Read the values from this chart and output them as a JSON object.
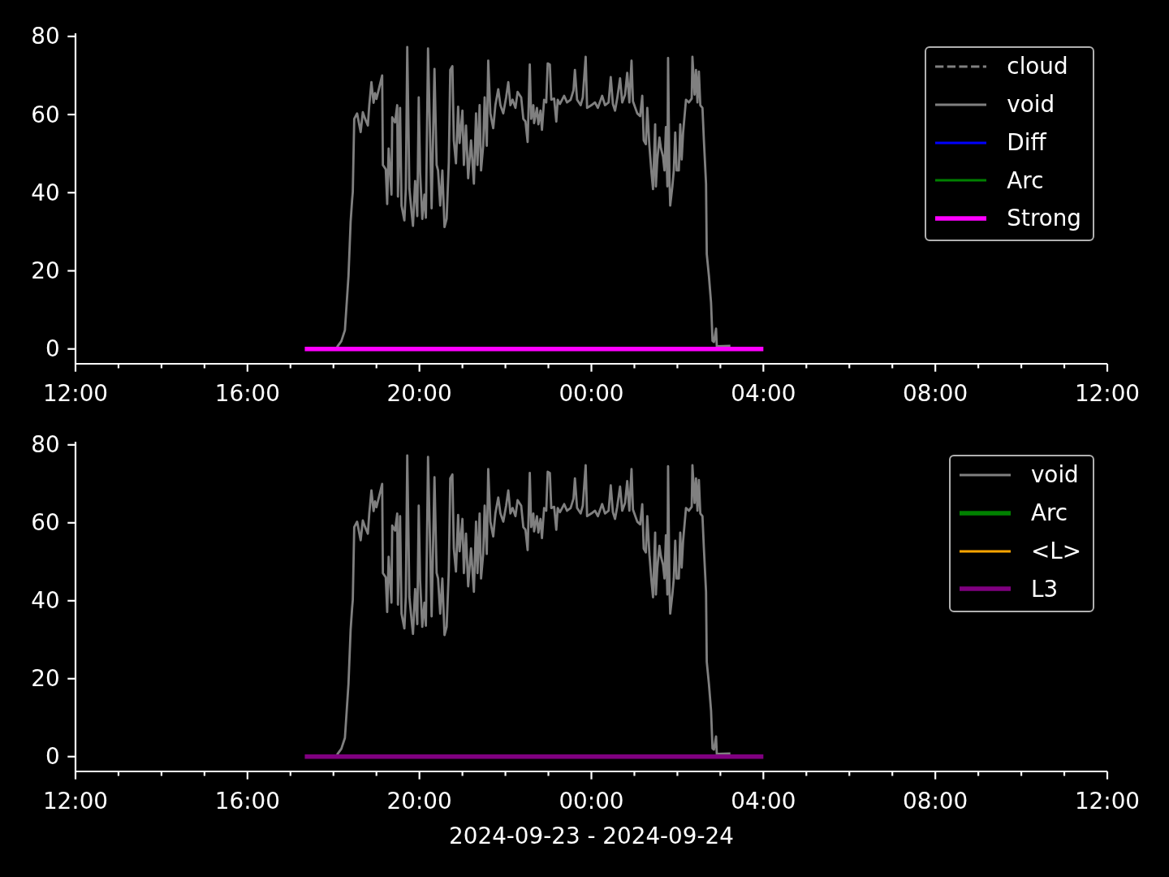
{
  "chart_data": [
    {
      "type": "line",
      "xlim": [
        "2024-09-23T12:00",
        "2024-09-24T12:00"
      ],
      "xticks": [
        {
          "value": "2024-09-23T12:00",
          "label": "12:00"
        },
        {
          "value": "2024-09-23T13:00",
          "label": null
        },
        {
          "value": "2024-09-23T14:00",
          "label": null
        },
        {
          "value": "2024-09-23T15:00",
          "label": null
        },
        {
          "value": "2024-09-23T16:00",
          "label": "16:00"
        },
        {
          "value": "2024-09-23T17:00",
          "label": null
        },
        {
          "value": "2024-09-23T18:00",
          "label": null
        },
        {
          "value": "2024-09-23T19:00",
          "label": null
        },
        {
          "value": "2024-09-23T20:00",
          "label": "20:00"
        },
        {
          "value": "2024-09-23T21:00",
          "label": null
        },
        {
          "value": "2024-09-23T22:00",
          "label": null
        },
        {
          "value": "2024-09-23T23:00",
          "label": null
        },
        {
          "value": "2024-09-24T00:00",
          "label": "00:00"
        },
        {
          "value": "2024-09-24T01:00",
          "label": null
        },
        {
          "value": "2024-09-24T02:00",
          "label": null
        },
        {
          "value": "2024-09-24T03:00",
          "label": null
        },
        {
          "value": "2024-09-24T04:00",
          "label": "04:00"
        },
        {
          "value": "2024-09-24T05:00",
          "label": null
        },
        {
          "value": "2024-09-24T06:00",
          "label": null
        },
        {
          "value": "2024-09-24T07:00",
          "label": null
        },
        {
          "value": "2024-09-24T08:00",
          "label": "08:00"
        },
        {
          "value": "2024-09-24T09:00",
          "label": null
        },
        {
          "value": "2024-09-24T10:00",
          "label": null
        },
        {
          "value": "2024-09-24T11:00",
          "label": null
        },
        {
          "value": "2024-09-24T12:00",
          "label": "12:00"
        }
      ],
      "ylim": [
        -3.8,
        80.8
      ],
      "yticks": [
        0,
        20,
        40,
        60,
        80
      ],
      "legend": "top right",
      "series": [
        {
          "name": "cloud",
          "color": "#808080",
          "line_style": "dashed"
        },
        {
          "name": "void",
          "color": "#808080",
          "x": [
            "2024-09-23T18:05",
            "2024-09-23T18:11",
            "2024-09-23T18:16",
            "2024-09-23T18:21",
            "2024-09-23T18:24",
            "2024-09-23T18:26",
            "2024-09-23T18:27",
            "2024-09-23T18:29",
            "2024-09-23T18:33",
            "2024-09-23T18:38",
            "2024-09-23T18:41",
            "2024-09-23T18:44",
            "2024-09-23T18:48",
            "2024-09-23T18:50",
            "2024-09-23T18:53",
            "2024-09-23T18:56",
            "2024-09-23T18:58",
            "2024-09-23T19:00",
            "2024-09-23T19:04",
            "2024-09-23T19:08",
            "2024-09-23T19:09",
            "2024-09-23T19:13",
            "2024-09-23T19:15",
            "2024-09-23T19:17",
            "2024-09-23T19:21",
            "2024-09-23T19:22",
            "2024-09-23T19:26",
            "2024-09-23T19:29",
            "2024-09-23T19:30",
            "2024-09-23T19:33",
            "2024-09-23T19:35",
            "2024-09-23T19:39",
            "2024-09-23T19:41",
            "2024-09-23T19:43",
            "2024-09-23T19:46",
            "2024-09-23T19:48",
            "2024-09-23T19:51",
            "2024-09-23T19:54",
            "2024-09-23T19:57",
            "2024-09-23T19:59",
            "2024-09-23T20:01",
            "2024-09-23T20:04",
            "2024-09-23T20:07",
            "2024-09-23T20:09",
            "2024-09-23T20:12",
            "2024-09-23T20:15",
            "2024-09-23T20:17",
            "2024-09-23T20:21",
            "2024-09-23T20:24",
            "2024-09-23T20:26",
            "2024-09-23T20:29",
            "2024-09-23T20:32",
            "2024-09-23T20:35",
            "2024-09-23T20:38",
            "2024-09-23T20:41",
            "2024-09-23T20:43",
            "2024-09-23T20:46",
            "2024-09-23T20:48",
            "2024-09-23T20:51",
            "2024-09-23T20:54",
            "2024-09-23T20:56",
            "2024-09-23T21:00",
            "2024-09-23T21:02",
            "2024-09-23T21:05",
            "2024-09-23T21:08",
            "2024-09-23T21:12",
            "2024-09-23T21:16",
            "2024-09-23T21:19",
            "2024-09-23T21:21",
            "2024-09-23T21:24",
            "2024-09-23T21:26",
            "2024-09-23T21:29",
            "2024-09-23T21:31",
            "2024-09-23T21:34",
            "2024-09-23T21:36",
            "2024-09-23T21:39",
            "2024-09-23T21:43",
            "2024-09-23T21:46",
            "2024-09-23T21:50",
            "2024-09-23T21:53",
            "2024-09-23T21:57",
            "2024-09-23T22:01",
            "2024-09-23T22:04",
            "2024-09-23T22:07",
            "2024-09-23T22:10",
            "2024-09-23T22:14",
            "2024-09-23T22:17",
            "2024-09-23T22:22",
            "2024-09-23T22:25",
            "2024-09-23T22:28",
            "2024-09-23T22:31",
            "2024-09-23T22:34",
            "2024-09-23T22:36",
            "2024-09-23T22:39",
            "2024-09-23T22:40",
            "2024-09-23T22:44",
            "2024-09-23T22:46",
            "2024-09-23T22:49",
            "2024-09-23T22:51",
            "2024-09-23T22:54",
            "2024-09-23T22:57",
            "2024-09-23T22:59",
            "2024-09-23T23:02",
            "2024-09-23T23:04",
            "2024-09-23T23:08",
            "2024-09-23T23:11",
            "2024-09-23T23:13",
            "2024-09-23T23:16",
            "2024-09-23T23:22",
            "2024-09-23T23:26",
            "2024-09-23T23:31",
            "2024-09-23T23:35",
            "2024-09-23T23:37",
            "2024-09-23T23:40",
            "2024-09-23T23:45",
            "2024-09-23T23:48",
            "2024-09-23T23:52",
            "2024-09-23T23:54",
            "2024-09-24T00:00",
            "2024-09-24T00:05",
            "2024-09-24T00:09",
            "2024-09-24T00:15",
            "2024-09-24T00:19",
            "2024-09-24T00:24",
            "2024-09-24T00:27",
            "2024-09-24T00:30",
            "2024-09-24T00:33",
            "2024-09-24T00:36",
            "2024-09-24T00:40",
            "2024-09-24T00:43",
            "2024-09-24T00:47",
            "2024-09-24T00:50",
            "2024-09-24T00:53",
            "2024-09-24T00:56",
            "2024-09-24T00:58",
            "2024-09-24T01:04",
            "2024-09-24T01:08",
            "2024-09-24T01:11",
            "2024-09-24T01:13",
            "2024-09-24T01:16",
            "2024-09-24T01:18",
            "2024-09-24T01:21",
            "2024-09-24T01:24",
            "2024-09-24T01:26",
            "2024-09-24T01:29",
            "2024-09-24T01:30",
            "2024-09-24T01:32",
            "2024-09-24T01:35",
            "2024-09-24T01:37",
            "2024-09-24T01:40",
            "2024-09-24T01:42",
            "2024-09-24T01:44",
            "2024-09-24T01:46",
            "2024-09-24T01:47",
            "2024-09-24T01:49",
            "2024-09-24T01:50",
            "2024-09-24T01:53",
            "2024-09-24T01:55",
            "2024-09-24T01:57",
            "2024-09-24T01:59",
            "2024-09-24T02:02",
            "2024-09-24T02:04",
            "2024-09-24T02:06",
            "2024-09-24T02:08",
            "2024-09-24T02:12",
            "2024-09-24T02:16",
            "2024-09-24T02:20",
            "2024-09-24T02:21",
            "2024-09-24T02:24",
            "2024-09-24T02:26",
            "2024-09-24T02:28",
            "2024-09-24T02:30",
            "2024-09-24T02:32",
            "2024-09-24T02:35",
            "2024-09-24T02:37",
            "2024-09-24T02:40",
            "2024-09-24T02:41",
            "2024-09-24T02:44",
            "2024-09-24T02:47",
            "2024-09-24T02:49",
            "2024-09-24T02:51",
            "2024-09-24T02:54",
            "2024-09-24T02:55",
            "2024-09-24T03:14"
          ],
          "values": [
            0.5,
            2,
            4.8,
            18.7,
            32.6,
            38,
            40.2,
            58.9,
            60.3,
            55.5,
            60.6,
            59,
            57.2,
            62.4,
            68.3,
            63,
            65.5,
            64,
            67,
            70,
            47.1,
            46,
            37.1,
            51.3,
            39.5,
            59.3,
            58,
            62.4,
            39,
            61.7,
            36.7,
            32.9,
            41,
            77.3,
            41,
            37,
            31.5,
            43,
            34,
            64.4,
            45,
            33.3,
            39.5,
            33.6,
            76.9,
            53.4,
            36,
            71.7,
            47.1,
            45.7,
            36.7,
            45.7,
            31.2,
            33.3,
            47.8,
            71.4,
            72.4,
            53.4,
            47.5,
            62,
            52.7,
            61,
            47.1,
            57.2,
            43.7,
            53.4,
            42.3,
            60.3,
            47.1,
            62.4,
            45.7,
            52,
            64.4,
            52,
            73.8,
            60.3,
            56.5,
            62.4,
            66.5,
            62.4,
            60.3,
            64.4,
            68.3,
            62.4,
            63.8,
            61.7,
            65.8,
            64.4,
            58.9,
            58.2,
            53,
            72.8,
            58.9,
            62.4,
            57.8,
            61.7,
            57.5,
            61,
            56.1,
            63.8,
            63.1,
            73.1,
            72.8,
            63.8,
            64.1,
            58.2,
            63.8,
            62.7,
            64.8,
            63.1,
            63.8,
            66.2,
            71.4,
            63.8,
            62.4,
            64.4,
            74.8,
            61.7,
            62.4,
            63.1,
            61.7,
            64.8,
            62.4,
            63.1,
            69.6,
            62.7,
            61,
            64.1,
            69.3,
            63.1,
            65.1,
            70.7,
            63.1,
            73.8,
            63.4,
            60.3,
            59.6,
            64.8,
            53.4,
            52.4,
            61.7,
            51.8,
            44.8,
            40.9,
            57.5,
            41.6,
            48.5,
            54.1,
            51.4,
            49.2,
            45.7,
            56.8,
            41.6,
            74.5,
            43,
            36.7,
            41.6,
            45.7,
            55.4,
            45.7,
            45.7,
            57.5,
            48.5,
            55.4,
            63.8,
            63.1,
            64.1,
            74.8,
            65.1,
            71.4,
            63.1,
            71,
            62.4,
            61.7,
            53.4,
            42.3,
            24.3,
            18.7,
            11.8,
            2.1,
            1.8,
            5.2,
            0.7,
            0.8
          ]
        },
        {
          "name": "Diff",
          "color": "#0000ff"
        },
        {
          "name": "Arc",
          "color": "#008000"
        },
        {
          "name": "Strong",
          "color": "#ff00ff",
          "x": [
            "2024-09-23T17:20",
            "2024-09-24T04:00"
          ],
          "values": [
            0,
            0
          ]
        }
      ]
    },
    {
      "type": "line",
      "xlabel": "2024-09-23 - 2024-09-24",
      "xlim": [
        "2024-09-23T12:00",
        "2024-09-24T12:00"
      ],
      "xticks": [
        {
          "value": "2024-09-23T12:00",
          "label": "12:00"
        },
        {
          "value": "2024-09-23T13:00",
          "label": null
        },
        {
          "value": "2024-09-23T14:00",
          "label": null
        },
        {
          "value": "2024-09-23T15:00",
          "label": null
        },
        {
          "value": "2024-09-23T16:00",
          "label": "16:00"
        },
        {
          "value": "2024-09-23T17:00",
          "label": null
        },
        {
          "value": "2024-09-23T18:00",
          "label": null
        },
        {
          "value": "2024-09-23T19:00",
          "label": null
        },
        {
          "value": "2024-09-23T20:00",
          "label": "20:00"
        },
        {
          "value": "2024-09-23T21:00",
          "label": null
        },
        {
          "value": "2024-09-23T22:00",
          "label": null
        },
        {
          "value": "2024-09-23T23:00",
          "label": null
        },
        {
          "value": "2024-09-24T00:00",
          "label": "00:00"
        },
        {
          "value": "2024-09-24T01:00",
          "label": null
        },
        {
          "value": "2024-09-24T02:00",
          "label": null
        },
        {
          "value": "2024-09-24T03:00",
          "label": null
        },
        {
          "value": "2024-09-24T04:00",
          "label": "04:00"
        },
        {
          "value": "2024-09-24T05:00",
          "label": null
        },
        {
          "value": "2024-09-24T06:00",
          "label": null
        },
        {
          "value": "2024-09-24T07:00",
          "label": null
        },
        {
          "value": "2024-09-24T08:00",
          "label": "08:00"
        },
        {
          "value": "2024-09-24T09:00",
          "label": null
        },
        {
          "value": "2024-09-24T10:00",
          "label": null
        },
        {
          "value": "2024-09-24T11:00",
          "label": null
        },
        {
          "value": "2024-09-24T12:00",
          "label": "12:00"
        }
      ],
      "ylim": [
        -3.8,
        80.8
      ],
      "yticks": [
        0,
        20,
        40,
        60,
        80
      ],
      "legend": "top right",
      "series": [
        {
          "name": "void",
          "color": "#808080",
          "x": [
            "2024-09-23T18:05",
            "2024-09-23T18:11",
            "2024-09-23T18:16",
            "2024-09-23T18:21",
            "2024-09-23T18:24",
            "2024-09-23T18:26",
            "2024-09-23T18:27",
            "2024-09-23T18:29",
            "2024-09-23T18:33",
            "2024-09-23T18:38",
            "2024-09-23T18:41",
            "2024-09-23T18:44",
            "2024-09-23T18:48",
            "2024-09-23T18:50",
            "2024-09-23T18:53",
            "2024-09-23T18:56",
            "2024-09-23T18:58",
            "2024-09-23T19:00",
            "2024-09-23T19:04",
            "2024-09-23T19:08",
            "2024-09-23T19:09",
            "2024-09-23T19:13",
            "2024-09-23T19:15",
            "2024-09-23T19:17",
            "2024-09-23T19:21",
            "2024-09-23T19:22",
            "2024-09-23T19:26",
            "2024-09-23T19:29",
            "2024-09-23T19:30",
            "2024-09-23T19:33",
            "2024-09-23T19:35",
            "2024-09-23T19:39",
            "2024-09-23T19:41",
            "2024-09-23T19:43",
            "2024-09-23T19:46",
            "2024-09-23T19:48",
            "2024-09-23T19:51",
            "2024-09-23T19:54",
            "2024-09-23T19:57",
            "2024-09-23T19:59",
            "2024-09-23T20:01",
            "2024-09-23T20:04",
            "2024-09-23T20:07",
            "2024-09-23T20:09",
            "2024-09-23T20:12",
            "2024-09-23T20:15",
            "2024-09-23T20:17",
            "2024-09-23T20:21",
            "2024-09-23T20:24",
            "2024-09-23T20:26",
            "2024-09-23T20:29",
            "2024-09-23T20:32",
            "2024-09-23T20:35",
            "2024-09-23T20:38",
            "2024-09-23T20:41",
            "2024-09-23T20:43",
            "2024-09-23T20:46",
            "2024-09-23T20:48",
            "2024-09-23T20:51",
            "2024-09-23T20:54",
            "2024-09-23T20:56",
            "2024-09-23T21:00",
            "2024-09-23T21:02",
            "2024-09-23T21:05",
            "2024-09-23T21:08",
            "2024-09-23T21:12",
            "2024-09-23T21:16",
            "2024-09-23T21:19",
            "2024-09-23T21:21",
            "2024-09-23T21:24",
            "2024-09-23T21:26",
            "2024-09-23T21:29",
            "2024-09-23T21:31",
            "2024-09-23T21:34",
            "2024-09-23T21:36",
            "2024-09-23T21:39",
            "2024-09-23T21:43",
            "2024-09-23T21:46",
            "2024-09-23T21:50",
            "2024-09-23T21:53",
            "2024-09-23T21:57",
            "2024-09-23T22:01",
            "2024-09-23T22:04",
            "2024-09-23T22:07",
            "2024-09-23T22:10",
            "2024-09-23T22:14",
            "2024-09-23T22:17",
            "2024-09-23T22:22",
            "2024-09-23T22:25",
            "2024-09-23T22:28",
            "2024-09-23T22:31",
            "2024-09-23T22:34",
            "2024-09-23T22:36",
            "2024-09-23T22:39",
            "2024-09-23T22:40",
            "2024-09-23T22:44",
            "2024-09-23T22:46",
            "2024-09-23T22:49",
            "2024-09-23T22:51",
            "2024-09-23T22:54",
            "2024-09-23T22:57",
            "2024-09-23T22:59",
            "2024-09-23T23:02",
            "2024-09-23T23:04",
            "2024-09-23T23:08",
            "2024-09-23T23:11",
            "2024-09-23T23:13",
            "2024-09-23T23:16",
            "2024-09-23T23:22",
            "2024-09-23T23:26",
            "2024-09-23T23:31",
            "2024-09-23T23:35",
            "2024-09-23T23:37",
            "2024-09-23T23:40",
            "2024-09-23T23:45",
            "2024-09-23T23:48",
            "2024-09-23T23:52",
            "2024-09-23T23:54",
            "2024-09-24T00:00",
            "2024-09-24T00:05",
            "2024-09-24T00:09",
            "2024-09-24T00:15",
            "2024-09-24T00:19",
            "2024-09-24T00:24",
            "2024-09-24T00:27",
            "2024-09-24T00:30",
            "2024-09-24T00:33",
            "2024-09-24T00:36",
            "2024-09-24T00:40",
            "2024-09-24T00:43",
            "2024-09-24T00:47",
            "2024-09-24T00:50",
            "2024-09-24T00:53",
            "2024-09-24T00:56",
            "2024-09-24T00:58",
            "2024-09-24T01:04",
            "2024-09-24T01:08",
            "2024-09-24T01:11",
            "2024-09-24T01:13",
            "2024-09-24T01:16",
            "2024-09-24T01:18",
            "2024-09-24T01:21",
            "2024-09-24T01:24",
            "2024-09-24T01:26",
            "2024-09-24T01:29",
            "2024-09-24T01:30",
            "2024-09-24T01:32",
            "2024-09-24T01:35",
            "2024-09-24T01:37",
            "2024-09-24T01:40",
            "2024-09-24T01:42",
            "2024-09-24T01:44",
            "2024-09-24T01:46",
            "2024-09-24T01:47",
            "2024-09-24T01:49",
            "2024-09-24T01:50",
            "2024-09-24T01:53",
            "2024-09-24T01:55",
            "2024-09-24T01:57",
            "2024-09-24T01:59",
            "2024-09-24T02:02",
            "2024-09-24T02:04",
            "2024-09-24T02:06",
            "2024-09-24T02:08",
            "2024-09-24T02:12",
            "2024-09-24T02:16",
            "2024-09-24T02:20",
            "2024-09-24T02:21",
            "2024-09-24T02:24",
            "2024-09-24T02:26",
            "2024-09-24T02:28",
            "2024-09-24T02:30",
            "2024-09-24T02:32",
            "2024-09-24T02:35",
            "2024-09-24T02:37",
            "2024-09-24T02:40",
            "2024-09-24T02:41",
            "2024-09-24T02:44",
            "2024-09-24T02:47",
            "2024-09-24T02:49",
            "2024-09-24T02:51",
            "2024-09-24T02:54",
            "2024-09-24T02:55",
            "2024-09-24T03:14"
          ],
          "values": [
            0.5,
            2,
            4.8,
            18.7,
            32.6,
            38,
            40.2,
            58.9,
            60.3,
            55.5,
            60.6,
            59,
            57.2,
            62.4,
            68.3,
            63,
            65.5,
            64,
            67,
            70,
            47.1,
            46,
            37.1,
            51.3,
            39.5,
            59.3,
            58,
            62.4,
            39,
            61.7,
            36.7,
            32.9,
            41,
            77.3,
            41,
            37,
            31.5,
            43,
            34,
            64.4,
            45,
            33.3,
            39.5,
            33.6,
            76.9,
            53.4,
            36,
            71.7,
            47.1,
            45.7,
            36.7,
            45.7,
            31.2,
            33.3,
            47.8,
            71.4,
            72.4,
            53.4,
            47.5,
            62,
            52.7,
            61,
            47.1,
            57.2,
            43.7,
            53.4,
            42.3,
            60.3,
            47.1,
            62.4,
            45.7,
            52,
            64.4,
            52,
            73.8,
            60.3,
            56.5,
            62.4,
            66.5,
            62.4,
            60.3,
            64.4,
            68.3,
            62.4,
            63.8,
            61.7,
            65.8,
            64.4,
            58.9,
            58.2,
            53,
            72.8,
            58.9,
            62.4,
            57.8,
            61.7,
            57.5,
            61,
            56.1,
            63.8,
            63.1,
            73.1,
            72.8,
            63.8,
            64.1,
            58.2,
            63.8,
            62.7,
            64.8,
            63.1,
            63.8,
            66.2,
            71.4,
            63.8,
            62.4,
            64.4,
            74.8,
            61.7,
            62.4,
            63.1,
            61.7,
            64.8,
            62.4,
            63.1,
            69.6,
            62.7,
            61,
            64.1,
            69.3,
            63.1,
            65.1,
            70.7,
            63.1,
            73.8,
            63.4,
            60.3,
            59.6,
            64.8,
            53.4,
            52.4,
            61.7,
            51.8,
            44.8,
            40.9,
            57.5,
            41.6,
            48.5,
            54.1,
            51.4,
            49.2,
            45.7,
            56.8,
            41.6,
            74.5,
            43,
            36.7,
            41.6,
            45.7,
            55.4,
            45.7,
            45.7,
            57.5,
            48.5,
            55.4,
            63.8,
            63.1,
            64.1,
            74.8,
            65.1,
            71.4,
            63.1,
            71,
            62.4,
            61.7,
            53.4,
            42.3,
            24.3,
            18.7,
            11.8,
            2.1,
            1.8,
            5.2,
            0.7,
            0.8
          ]
        },
        {
          "name": "Arc",
          "color": "#008000"
        },
        {
          "name": "<L>",
          "color": "#ffa500"
        },
        {
          "name": "L3",
          "color": "#800080",
          "x": [
            "2024-09-23T17:20",
            "2024-09-24T04:00"
          ],
          "values": [
            0,
            0
          ]
        }
      ]
    }
  ]
}
